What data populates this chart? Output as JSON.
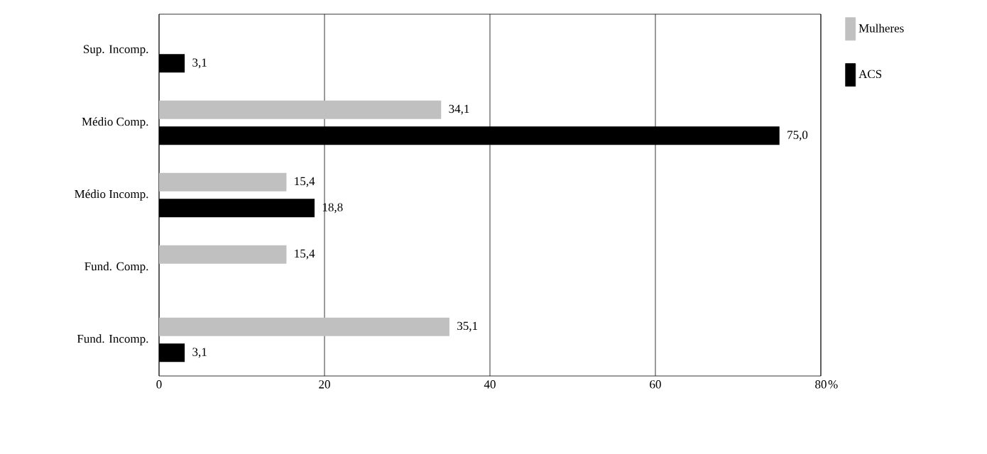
{
  "chart_data": {
    "type": "bar",
    "orientation": "horizontal",
    "categories": [
      "Sup. Incomp.",
      "Médio Comp.",
      "Médio Incomp.",
      "Fund. Comp.",
      "Fund. Incomp."
    ],
    "series": [
      {
        "name": "Mulheres",
        "color": "#c0c0c0",
        "values": [
          null,
          34.1,
          15.4,
          15.4,
          35.1
        ],
        "value_labels": [
          null,
          "34,1",
          "15,4",
          "15,4",
          "35,1"
        ]
      },
      {
        "name": "ACS",
        "color": "#000000",
        "values": [
          3.1,
          75.0,
          18.8,
          null,
          3.1
        ],
        "value_labels": [
          "3,1",
          "75,0",
          "18,8",
          null,
          "3,1"
        ]
      }
    ],
    "xlabel": "%",
    "xlim": [
      0,
      80
    ],
    "xticks": [
      0,
      20,
      40,
      60,
      80
    ],
    "grid": "x",
    "legend": "top right"
  }
}
